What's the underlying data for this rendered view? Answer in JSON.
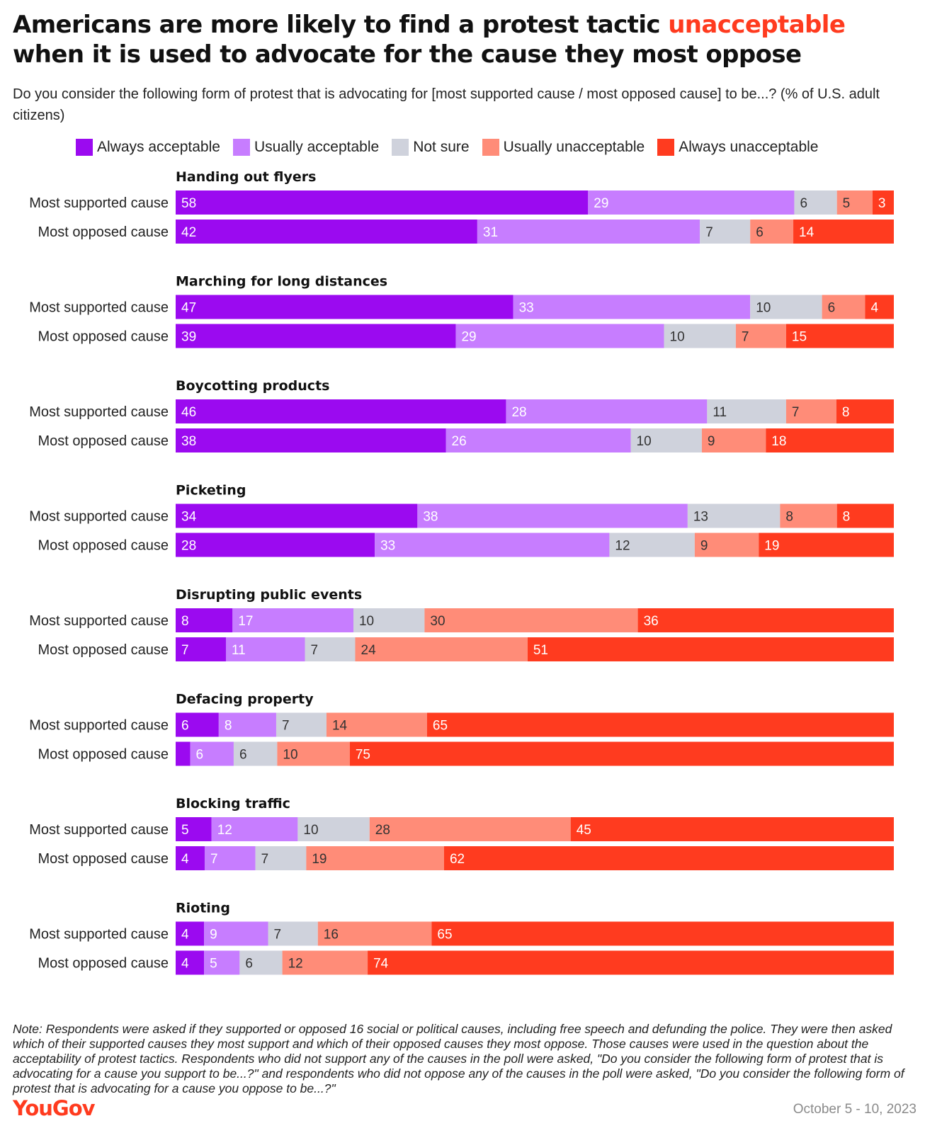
{
  "title": {
    "before": "Americans are more likely to find a protest tactic ",
    "highlight": "unacceptable",
    "after": " when it is used to advocate for the cause they most oppose"
  },
  "subtitle": "Do you consider the following form of protest that is advocating for [most supported cause / most opposed cause] to be...? (% of U.S. adult citizens)",
  "footnote": "Note: Respondents were asked if they supported or opposed 16 social or political causes, including free speech and defunding the police. They were then asked which of their supported causes they most support and which of their opposed causes they most oppose. Those causes were used in the question about the acceptability of protest tactics. Respondents who did not support any of the causes in the poll were asked, \"Do you consider the following form of protest that is advocating for a cause you support to be...?\" and respondents who did not oppose any of the causes in the poll were asked, \"Do you consider the following form of protest that is advocating for a cause you oppose to be...?\"",
  "brand": "YouGov",
  "date": "October 5 - 10, 2023",
  "colors": {
    "highlight": "#ff3b1f",
    "light_label_text": "#ffffff",
    "dark_label_text": "#333333"
  },
  "chart_data": {
    "type": "bar",
    "stacked": true,
    "orientation": "horizontal",
    "normalized": true,
    "legend_position": "top",
    "categories": [
      "Always acceptable",
      "Usually acceptable",
      "Not sure",
      "Usually unacceptable",
      "Always unacceptable"
    ],
    "category_colors": [
      "#9b0af0",
      "#c77dff",
      "#cfd2dc",
      "#ff8c78",
      "#ff3b1f"
    ],
    "groups": [
      {
        "name": "Handing out flyers",
        "rows": [
          {
            "label": "Most supported cause",
            "values": [
              58,
              29,
              6,
              5,
              3
            ],
            "labels": [
              "58",
              "29",
              "6",
              "5",
              "3"
            ]
          },
          {
            "label": "Most opposed cause",
            "values": [
              42,
              31,
              7,
              6,
              14
            ],
            "labels": [
              "42",
              "31",
              "7",
              "6",
              "14"
            ]
          }
        ]
      },
      {
        "name": "Marching for long distances",
        "rows": [
          {
            "label": "Most supported cause",
            "values": [
              47,
              33,
              10,
              6,
              4
            ],
            "labels": [
              "47",
              "33",
              "10",
              "6",
              "4"
            ]
          },
          {
            "label": "Most opposed cause",
            "values": [
              39,
              29,
              10,
              7,
              15
            ],
            "labels": [
              "39",
              "29",
              "10",
              "7",
              "15"
            ]
          }
        ]
      },
      {
        "name": "Boycotting products",
        "rows": [
          {
            "label": "Most supported cause",
            "values": [
              46,
              28,
              11,
              7,
              8
            ],
            "labels": [
              "46",
              "28",
              "11",
              "7",
              "8"
            ]
          },
          {
            "label": "Most opposed cause",
            "values": [
              38,
              26,
              10,
              9,
              18
            ],
            "labels": [
              "38",
              "26",
              "10",
              "9",
              "18"
            ]
          }
        ]
      },
      {
        "name": "Picketing",
        "rows": [
          {
            "label": "Most supported cause",
            "values": [
              34,
              38,
              13,
              8,
              8
            ],
            "labels": [
              "34",
              "38",
              "13",
              "8",
              "8"
            ]
          },
          {
            "label": "Most opposed cause",
            "values": [
              28,
              33,
              12,
              9,
              19
            ],
            "labels": [
              "28",
              "33",
              "12",
              "9",
              "19"
            ]
          }
        ]
      },
      {
        "name": "Disrupting public events",
        "rows": [
          {
            "label": "Most supported cause",
            "values": [
              8,
              17,
              10,
              30,
              36
            ],
            "labels": [
              "8",
              "17",
              "10",
              "30",
              "36"
            ]
          },
          {
            "label": "Most opposed cause",
            "values": [
              7,
              11,
              7,
              24,
              51
            ],
            "labels": [
              "7",
              "11",
              "7",
              "24",
              "51"
            ]
          }
        ]
      },
      {
        "name": "Defacing property",
        "rows": [
          {
            "label": "Most supported cause",
            "values": [
              6,
              8,
              7,
              14,
              65
            ],
            "labels": [
              "6",
              "8",
              "7",
              "14",
              "65"
            ]
          },
          {
            "label": "Most opposed cause",
            "values": [
              2,
              6,
              6,
              10,
              75
            ],
            "labels": [
              "",
              "6",
              "6",
              "10",
              "75"
            ]
          }
        ]
      },
      {
        "name": "Blocking traffic",
        "rows": [
          {
            "label": "Most supported cause",
            "values": [
              5,
              12,
              10,
              28,
              45
            ],
            "labels": [
              "5",
              "12",
              "10",
              "28",
              "45"
            ]
          },
          {
            "label": "Most opposed cause",
            "values": [
              4,
              7,
              7,
              19,
              62
            ],
            "labels": [
              "4",
              "7",
              "7",
              "19",
              "62"
            ]
          }
        ]
      },
      {
        "name": "Rioting",
        "rows": [
          {
            "label": "Most supported cause",
            "values": [
              4,
              9,
              7,
              16,
              65
            ],
            "labels": [
              "4",
              "9",
              "7",
              "16",
              "65"
            ]
          },
          {
            "label": "Most opposed cause",
            "values": [
              4,
              5,
              6,
              12,
              74
            ],
            "labels": [
              "4",
              "5",
              "6",
              "12",
              "74"
            ]
          }
        ]
      }
    ]
  }
}
